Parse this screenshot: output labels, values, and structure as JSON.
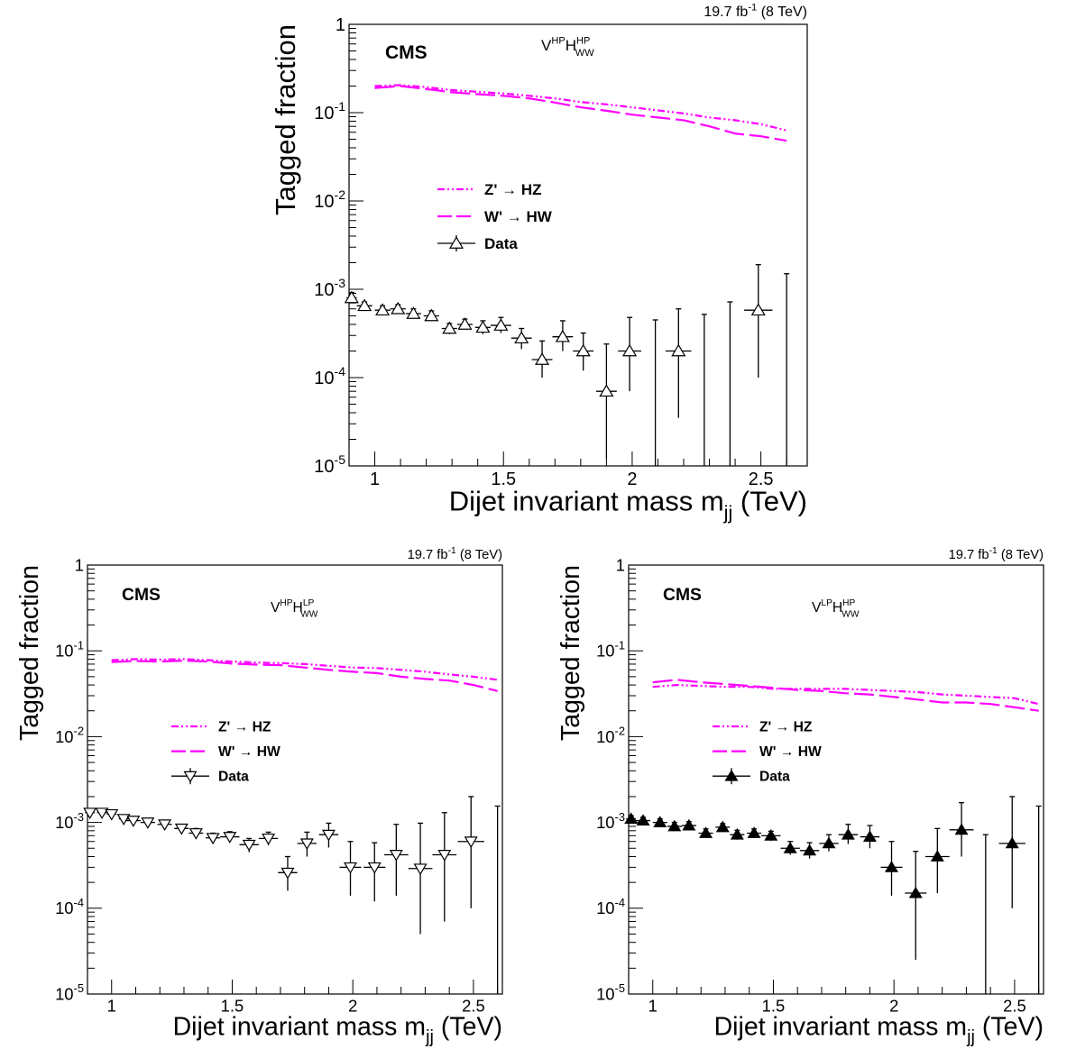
{
  "chart_data": [
    {
      "type": "scatter",
      "ylabel": "Tagged fraction",
      "xlabel_main": "Dijet invariant mass m",
      "xlabel_sub": "jj",
      "xlabel_unit": "(TeV)",
      "lumi": "19.7 fb",
      "lumi_sup": "-1",
      "lumi_energy": "(8 TeV)",
      "experiment": "CMS",
      "category_base_v": "V",
      "category_v_sup": "HP",
      "category_base_h": "H",
      "category_h_sup": "HP",
      "category_h_sub": "WW",
      "yscale": "log",
      "xlim": [
        0.9,
        2.68
      ],
      "ylim": [
        1e-05,
        1
      ],
      "x_ticks": [
        "1",
        "1.5",
        "2",
        "2.5"
      ],
      "y_ticks": [
        {
          "base": "1",
          "exp": ""
        },
        {
          "base": "10",
          "exp": "-1"
        },
        {
          "base": "10",
          "exp": "-2"
        },
        {
          "base": "10",
          "exp": "-3"
        },
        {
          "base": "10",
          "exp": "-4"
        },
        {
          "base": "10",
          "exp": "-5"
        }
      ],
      "legend": [
        {
          "text": "Z' → HZ",
          "style": "dashdot"
        },
        {
          "text": "W' → HW",
          "style": "dash"
        },
        {
          "text": "Data",
          "style": "marker"
        }
      ],
      "marker": "triangle-up-open",
      "series": [
        {
          "name": "Z' → HZ",
          "x": [
            1.0,
            1.1,
            1.2,
            1.3,
            1.4,
            1.5,
            1.6,
            1.7,
            1.8,
            1.9,
            2.0,
            2.1,
            2.2,
            2.3,
            2.4,
            2.5,
            2.6
          ],
          "values": [
            0.2,
            0.205,
            0.195,
            0.18,
            0.172,
            0.165,
            0.155,
            0.145,
            0.132,
            0.124,
            0.115,
            0.106,
            0.098,
            0.088,
            0.082,
            0.074,
            0.063
          ]
        },
        {
          "name": "W' → HW",
          "x": [
            1.0,
            1.1,
            1.2,
            1.3,
            1.4,
            1.5,
            1.6,
            1.7,
            1.8,
            1.9,
            2.0,
            2.1,
            2.2,
            2.3,
            2.4,
            2.5,
            2.6
          ],
          "values": [
            0.19,
            0.2,
            0.185,
            0.17,
            0.162,
            0.155,
            0.145,
            0.13,
            0.115,
            0.105,
            0.095,
            0.088,
            0.082,
            0.07,
            0.058,
            0.054,
            0.048
          ]
        },
        {
          "name": "Data",
          "x": [
            0.91,
            0.96,
            1.03,
            1.09,
            1.15,
            1.22,
            1.29,
            1.35,
            1.42,
            1.49,
            1.57,
            1.65,
            1.73,
            1.81,
            1.9,
            1.99,
            2.09,
            2.18,
            2.28,
            2.38,
            2.49,
            2.6
          ],
          "xerr": [
            0.02,
            0.03,
            0.03,
            0.03,
            0.03,
            0.03,
            0.03,
            0.03,
            0.03,
            0.04,
            0.04,
            0.04,
            0.04,
            0.04,
            0.04,
            0.045,
            0.045,
            0.05,
            0.05,
            0.05,
            0.055,
            0.055
          ],
          "values": [
            0.0008,
            0.00065,
            0.00058,
            0.0006,
            0.00053,
            0.0005,
            0.00036,
            0.0004,
            0.00037,
            0.00039,
            0.00028,
            0.00016,
            0.00029,
            0.0002,
            7e-05,
            0.0002,
            null,
            0.0002,
            null,
            null,
            0.00058,
            null
          ],
          "err_lo": [
            0.0007,
            0.0006,
            0.00052,
            0.00054,
            0.00047,
            0.00044,
            0.00031,
            0.00035,
            0.00031,
            0.00032,
            0.00021,
            0.0001,
            0.0002,
            0.00012,
            1.2e-05,
            7e-05,
            1e-05,
            3.5e-05,
            1e-05,
            1e-05,
            0.0001,
            1e-05
          ],
          "err_hi": [
            0.00092,
            0.00072,
            0.00065,
            0.00067,
            0.0006,
            0.00057,
            0.00041,
            0.00046,
            0.00044,
            0.00048,
            0.00036,
            0.00026,
            0.00044,
            0.00032,
            0.00024,
            0.00048,
            0.00045,
            0.0006,
            0.00052,
            0.00072,
            0.0019,
            0.0015
          ]
        }
      ]
    },
    {
      "type": "scatter",
      "ylabel": "Tagged fraction",
      "xlabel_main": "Dijet invariant mass m",
      "xlabel_sub": "jj",
      "xlabel_unit": "(TeV)",
      "lumi": "19.7 fb",
      "lumi_sup": "-1",
      "lumi_energy": "(8 TeV)",
      "experiment": "CMS",
      "category_base_v": "V",
      "category_v_sup": "HP",
      "category_base_h": "H",
      "category_h_sup": "LP",
      "category_h_sub": "WW",
      "yscale": "log",
      "xlim": [
        0.9,
        2.62
      ],
      "ylim": [
        1e-05,
        1
      ],
      "x_ticks": [
        "1",
        "1.5",
        "2",
        "2.5"
      ],
      "y_ticks": [
        {
          "base": "1",
          "exp": ""
        },
        {
          "base": "10",
          "exp": "-1"
        },
        {
          "base": "10",
          "exp": "-2"
        },
        {
          "base": "10",
          "exp": "-3"
        },
        {
          "base": "10",
          "exp": "-4"
        },
        {
          "base": "10",
          "exp": "-5"
        }
      ],
      "legend": [
        {
          "text": "Z' → HZ",
          "style": "dashdot"
        },
        {
          "text": "W' → HW",
          "style": "dash"
        },
        {
          "text": "Data",
          "style": "marker"
        }
      ],
      "marker": "triangle-down-open",
      "series": [
        {
          "name": "Z' → HZ",
          "x": [
            1.0,
            1.1,
            1.2,
            1.3,
            1.4,
            1.5,
            1.6,
            1.7,
            1.8,
            1.9,
            2.0,
            2.1,
            2.2,
            2.3,
            2.4,
            2.5,
            2.6
          ],
          "values": [
            0.078,
            0.08,
            0.079,
            0.08,
            0.078,
            0.075,
            0.073,
            0.072,
            0.07,
            0.067,
            0.064,
            0.063,
            0.06,
            0.057,
            0.053,
            0.05,
            0.046
          ]
        },
        {
          "name": "W' → HW",
          "x": [
            1.0,
            1.1,
            1.2,
            1.3,
            1.4,
            1.5,
            1.6,
            1.7,
            1.8,
            1.9,
            2.0,
            2.1,
            2.2,
            2.3,
            2.4,
            2.5,
            2.6
          ],
          "values": [
            0.074,
            0.076,
            0.075,
            0.077,
            0.075,
            0.071,
            0.069,
            0.068,
            0.064,
            0.06,
            0.057,
            0.055,
            0.05,
            0.047,
            0.045,
            0.04,
            0.034
          ]
        },
        {
          "name": "Data",
          "x": [
            0.91,
            0.96,
            1.0,
            1.05,
            1.09,
            1.15,
            1.22,
            1.29,
            1.35,
            1.42,
            1.49,
            1.57,
            1.65,
            1.73,
            1.81,
            1.9,
            1.99,
            2.09,
            2.18,
            2.28,
            2.38,
            2.49,
            2.6
          ],
          "xerr": [
            0.02,
            0.02,
            0.02,
            0.02,
            0.03,
            0.03,
            0.03,
            0.03,
            0.03,
            0.03,
            0.04,
            0.04,
            0.04,
            0.04,
            0.04,
            0.04,
            0.045,
            0.045,
            0.05,
            0.05,
            0.05,
            0.055,
            0.055
          ],
          "values": [
            0.0013,
            0.0013,
            0.00125,
            0.0011,
            0.00105,
            0.001,
            0.00095,
            0.00085,
            0.00075,
            0.00066,
            0.00068,
            0.00055,
            0.00065,
            0.00026,
            0.00057,
            0.00072,
            0.0003,
            0.0003,
            0.00042,
            0.00029,
            0.00042,
            0.0006,
            null
          ],
          "err_lo": [
            0.0012,
            0.0012,
            0.00115,
            0.001,
            0.00095,
            0.0009,
            0.00085,
            0.00075,
            0.00066,
            0.00057,
            0.00059,
            0.00045,
            0.00054,
            0.00016,
            0.0004,
            0.00051,
            0.00014,
            0.00012,
            0.00014,
            5e-05,
            7e-05,
            0.0001,
            1e-05
          ],
          "err_hi": [
            0.0014,
            0.0014,
            0.00135,
            0.0012,
            0.00115,
            0.0011,
            0.00105,
            0.00095,
            0.00085,
            0.00075,
            0.00078,
            0.00065,
            0.00077,
            0.0004,
            0.00077,
            0.00098,
            0.0006,
            0.00058,
            0.00095,
            0.00098,
            0.0013,
            0.002,
            0.00155
          ]
        }
      ]
    },
    {
      "type": "scatter",
      "ylabel": "Tagged fraction",
      "xlabel_main": "Dijet invariant mass m",
      "xlabel_sub": "jj",
      "xlabel_unit": "(TeV)",
      "lumi": "19.7 fb",
      "lumi_sup": "-1",
      "lumi_energy": "(8 TeV)",
      "experiment": "CMS",
      "category_base_v": "V",
      "category_v_sup": "LP",
      "category_base_h": "H",
      "category_h_sup": "HP",
      "category_h_sub": "WW",
      "yscale": "log",
      "xlim": [
        0.9,
        2.62
      ],
      "ylim": [
        1e-05,
        1
      ],
      "x_ticks": [
        "1",
        "1.5",
        "2",
        "2.5"
      ],
      "y_ticks": [
        {
          "base": "1",
          "exp": ""
        },
        {
          "base": "10",
          "exp": "-1"
        },
        {
          "base": "10",
          "exp": "-2"
        },
        {
          "base": "10",
          "exp": "-3"
        },
        {
          "base": "10",
          "exp": "-4"
        },
        {
          "base": "10",
          "exp": "-5"
        }
      ],
      "legend": [
        {
          "text": "Z' → HZ",
          "style": "dashdot"
        },
        {
          "text": "W' → HW",
          "style": "dash"
        },
        {
          "text": "Data",
          "style": "marker"
        }
      ],
      "marker": "triangle-up-filled",
      "series": [
        {
          "name": "Z' → HZ",
          "x": [
            1.0,
            1.1,
            1.2,
            1.3,
            1.4,
            1.5,
            1.6,
            1.7,
            1.8,
            1.9,
            2.0,
            2.1,
            2.2,
            2.3,
            2.4,
            2.5,
            2.6
          ],
          "values": [
            0.038,
            0.04,
            0.039,
            0.038,
            0.038,
            0.036,
            0.036,
            0.036,
            0.036,
            0.035,
            0.034,
            0.033,
            0.031,
            0.03,
            0.029,
            0.028,
            0.024
          ]
        },
        {
          "name": "W' → HW",
          "x": [
            1.0,
            1.1,
            1.2,
            1.3,
            1.4,
            1.5,
            1.6,
            1.7,
            1.8,
            1.9,
            2.0,
            2.1,
            2.2,
            2.3,
            2.4,
            2.5,
            2.6
          ],
          "values": [
            0.043,
            0.046,
            0.043,
            0.041,
            0.039,
            0.037,
            0.035,
            0.034,
            0.032,
            0.031,
            0.029,
            0.027,
            0.025,
            0.025,
            0.024,
            0.022,
            0.02
          ]
        },
        {
          "name": "Data",
          "x": [
            0.91,
            0.96,
            1.03,
            1.09,
            1.15,
            1.22,
            1.29,
            1.35,
            1.42,
            1.49,
            1.57,
            1.65,
            1.73,
            1.81,
            1.9,
            1.99,
            2.09,
            2.18,
            2.28,
            2.38,
            2.49,
            2.6
          ],
          "xerr": [
            0.02,
            0.03,
            0.03,
            0.03,
            0.03,
            0.03,
            0.03,
            0.03,
            0.03,
            0.04,
            0.04,
            0.04,
            0.04,
            0.04,
            0.04,
            0.045,
            0.045,
            0.05,
            0.05,
            0.05,
            0.055,
            0.055
          ],
          "values": [
            0.0011,
            0.00105,
            0.001,
            0.0009,
            0.00092,
            0.00075,
            0.00088,
            0.00072,
            0.00075,
            0.0007,
            0.0005,
            0.00047,
            0.00057,
            0.00072,
            0.00068,
            0.0003,
            0.00015,
            0.0004,
            0.00082,
            null,
            0.00057,
            null
          ],
          "err_lo": [
            0.001,
            0.00095,
            0.0009,
            0.0008,
            0.00082,
            0.00066,
            0.00079,
            0.00063,
            0.00066,
            0.00061,
            0.00042,
            0.00038,
            0.00046,
            0.00056,
            0.0005,
            0.00014,
            2.5e-05,
            0.00015,
            0.0004,
            1e-05,
            0.0001,
            1e-05
          ],
          "err_hi": [
            0.0012,
            0.00115,
            0.0011,
            0.001,
            0.00102,
            0.00084,
            0.00097,
            0.00081,
            0.00084,
            0.00079,
            0.0006,
            0.00058,
            0.00072,
            0.00095,
            0.00092,
            0.0006,
            0.00046,
            0.00085,
            0.0017,
            0.00072,
            0.002,
            0.00155
          ]
        }
      ]
    }
  ],
  "colors": {
    "signal": "#ff00ff",
    "data": "#000000",
    "frame": "#000000"
  }
}
